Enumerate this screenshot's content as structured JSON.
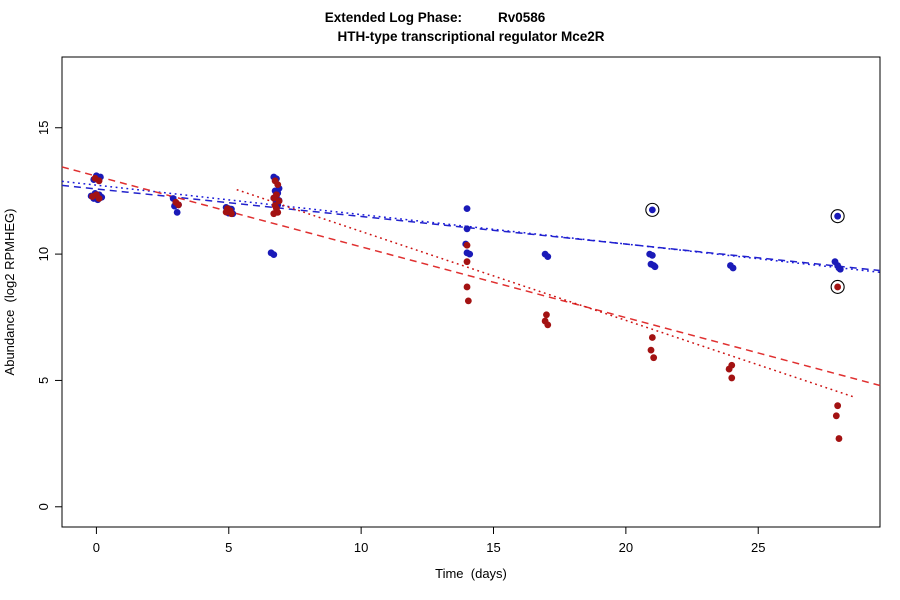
{
  "chart_data": {
    "type": "scatter",
    "title": {
      "label": "Extended Log Phase:",
      "gene": "Rv0586"
    },
    "subtitle": "HTH-type transcriptional regulator Mce2R",
    "xlabel": "Time  (days)",
    "ylabel": "Abundance  (log2 RPMHEG)",
    "xlim": [
      -1.3,
      29.6
    ],
    "ylim": [
      -0.8,
      17.8
    ],
    "x_ticks": [
      0,
      5,
      10,
      15,
      20,
      25
    ],
    "y_ticks": [
      0,
      5,
      10,
      15
    ],
    "grid": false,
    "legend": "none",
    "series": [
      {
        "name": "condition-blue",
        "color": "#1a1ab8",
        "points": [
          [
            0,
            13.1
          ],
          [
            0.15,
            13.05
          ],
          [
            -0.1,
            12.95
          ],
          [
            -0.05,
            12.4
          ],
          [
            0.1,
            12.35
          ],
          [
            -0.2,
            12.3
          ],
          [
            0,
            12.25
          ],
          [
            0.2,
            12.25
          ],
          [
            0.1,
            12.2
          ],
          [
            -0.1,
            12.2
          ],
          [
            0.05,
            12.15
          ],
          [
            2.9,
            12.2
          ],
          [
            3,
            12.0
          ],
          [
            3.1,
            11.95
          ],
          [
            2.95,
            11.9
          ],
          [
            3.05,
            11.65
          ],
          [
            4.9,
            11.85
          ],
          [
            5,
            11.8
          ],
          [
            5.1,
            11.78
          ],
          [
            4.95,
            11.72
          ],
          [
            5.05,
            11.68
          ],
          [
            5,
            11.62
          ],
          [
            5.15,
            11.6
          ],
          [
            6.7,
            13.05
          ],
          [
            6.8,
            12.98
          ],
          [
            6.9,
            12.6
          ],
          [
            6.75,
            12.5
          ],
          [
            6.85,
            12.42
          ],
          [
            6.8,
            12.3
          ],
          [
            6.7,
            12.22
          ],
          [
            6.9,
            12.12
          ],
          [
            6.8,
            12.02
          ],
          [
            6.85,
            11.95
          ],
          [
            6.6,
            10.05
          ],
          [
            6.7,
            9.98
          ],
          [
            14,
            11.8
          ],
          [
            14,
            11.0
          ],
          [
            13.95,
            10.4
          ],
          [
            14,
            10.05
          ],
          [
            14.1,
            10.0
          ],
          [
            16.95,
            10.0
          ],
          [
            17.05,
            9.9
          ],
          [
            21,
            11.75
          ],
          [
            20.9,
            10.0
          ],
          [
            21,
            9.95
          ],
          [
            20.95,
            9.6
          ],
          [
            21.05,
            9.55
          ],
          [
            21.1,
            9.5
          ],
          [
            23.95,
            9.55
          ],
          [
            24.05,
            9.45
          ],
          [
            28,
            11.5
          ],
          [
            27.9,
            9.7
          ],
          [
            28,
            9.55
          ],
          [
            28.05,
            9.45
          ],
          [
            28.1,
            9.4
          ]
        ],
        "circled": [
          [
            21,
            11.75
          ],
          [
            28,
            11.5
          ]
        ]
      },
      {
        "name": "condition-red",
        "color": "#a31212",
        "points": [
          [
            -0.05,
            13.0
          ],
          [
            0.1,
            12.9
          ],
          [
            0,
            12.35
          ],
          [
            -0.15,
            12.28
          ],
          [
            0.1,
            12.2
          ],
          [
            3,
            12.05
          ],
          [
            3.1,
            11.95
          ],
          [
            4.95,
            11.8
          ],
          [
            5.05,
            11.72
          ],
          [
            4.9,
            11.66
          ],
          [
            5.1,
            11.6
          ],
          [
            6.75,
            12.9
          ],
          [
            6.85,
            12.75
          ],
          [
            6.8,
            12.35
          ],
          [
            6.7,
            12.22
          ],
          [
            6.9,
            12.1
          ],
          [
            6.75,
            11.92
          ],
          [
            6.8,
            11.8
          ],
          [
            6.85,
            11.65
          ],
          [
            6.7,
            11.6
          ],
          [
            14,
            10.35
          ],
          [
            14,
            9.7
          ],
          [
            14,
            8.7
          ],
          [
            14.05,
            8.15
          ],
          [
            17,
            7.6
          ],
          [
            16.95,
            7.35
          ],
          [
            17.05,
            7.2
          ],
          [
            21,
            6.7
          ],
          [
            20.95,
            6.2
          ],
          [
            21.05,
            5.9
          ],
          [
            24,
            5.6
          ],
          [
            23.9,
            5.45
          ],
          [
            24,
            5.1
          ],
          [
            28,
            8.7
          ],
          [
            28,
            4.0
          ],
          [
            27.95,
            3.6
          ],
          [
            28.05,
            2.7
          ]
        ],
        "circled": [
          [
            28,
            8.7
          ]
        ]
      }
    ],
    "trend_lines": [
      {
        "name": "blue-dashed",
        "color": "#2222cc",
        "dash": "7,5",
        "x1": -1.3,
        "y1": 12.72,
        "x2": 29.6,
        "y2": 9.35
      },
      {
        "name": "blue-dotted",
        "color": "#1a1ad8",
        "dash": "1.8,3.6",
        "x1": -1.3,
        "y1": 12.88,
        "x2": 29.6,
        "y2": 9.28
      },
      {
        "name": "red-dashed",
        "color": "#e03030",
        "dash": "7,5",
        "x1": -1.3,
        "y1": 13.45,
        "x2": 29.6,
        "y2": 4.8
      },
      {
        "name": "red-dotted",
        "color": "#cc1111",
        "dash": "1.8,3.6",
        "x1": 5.3,
        "y1": 12.55,
        "x2": 28.6,
        "y2": 4.35
      }
    ]
  }
}
